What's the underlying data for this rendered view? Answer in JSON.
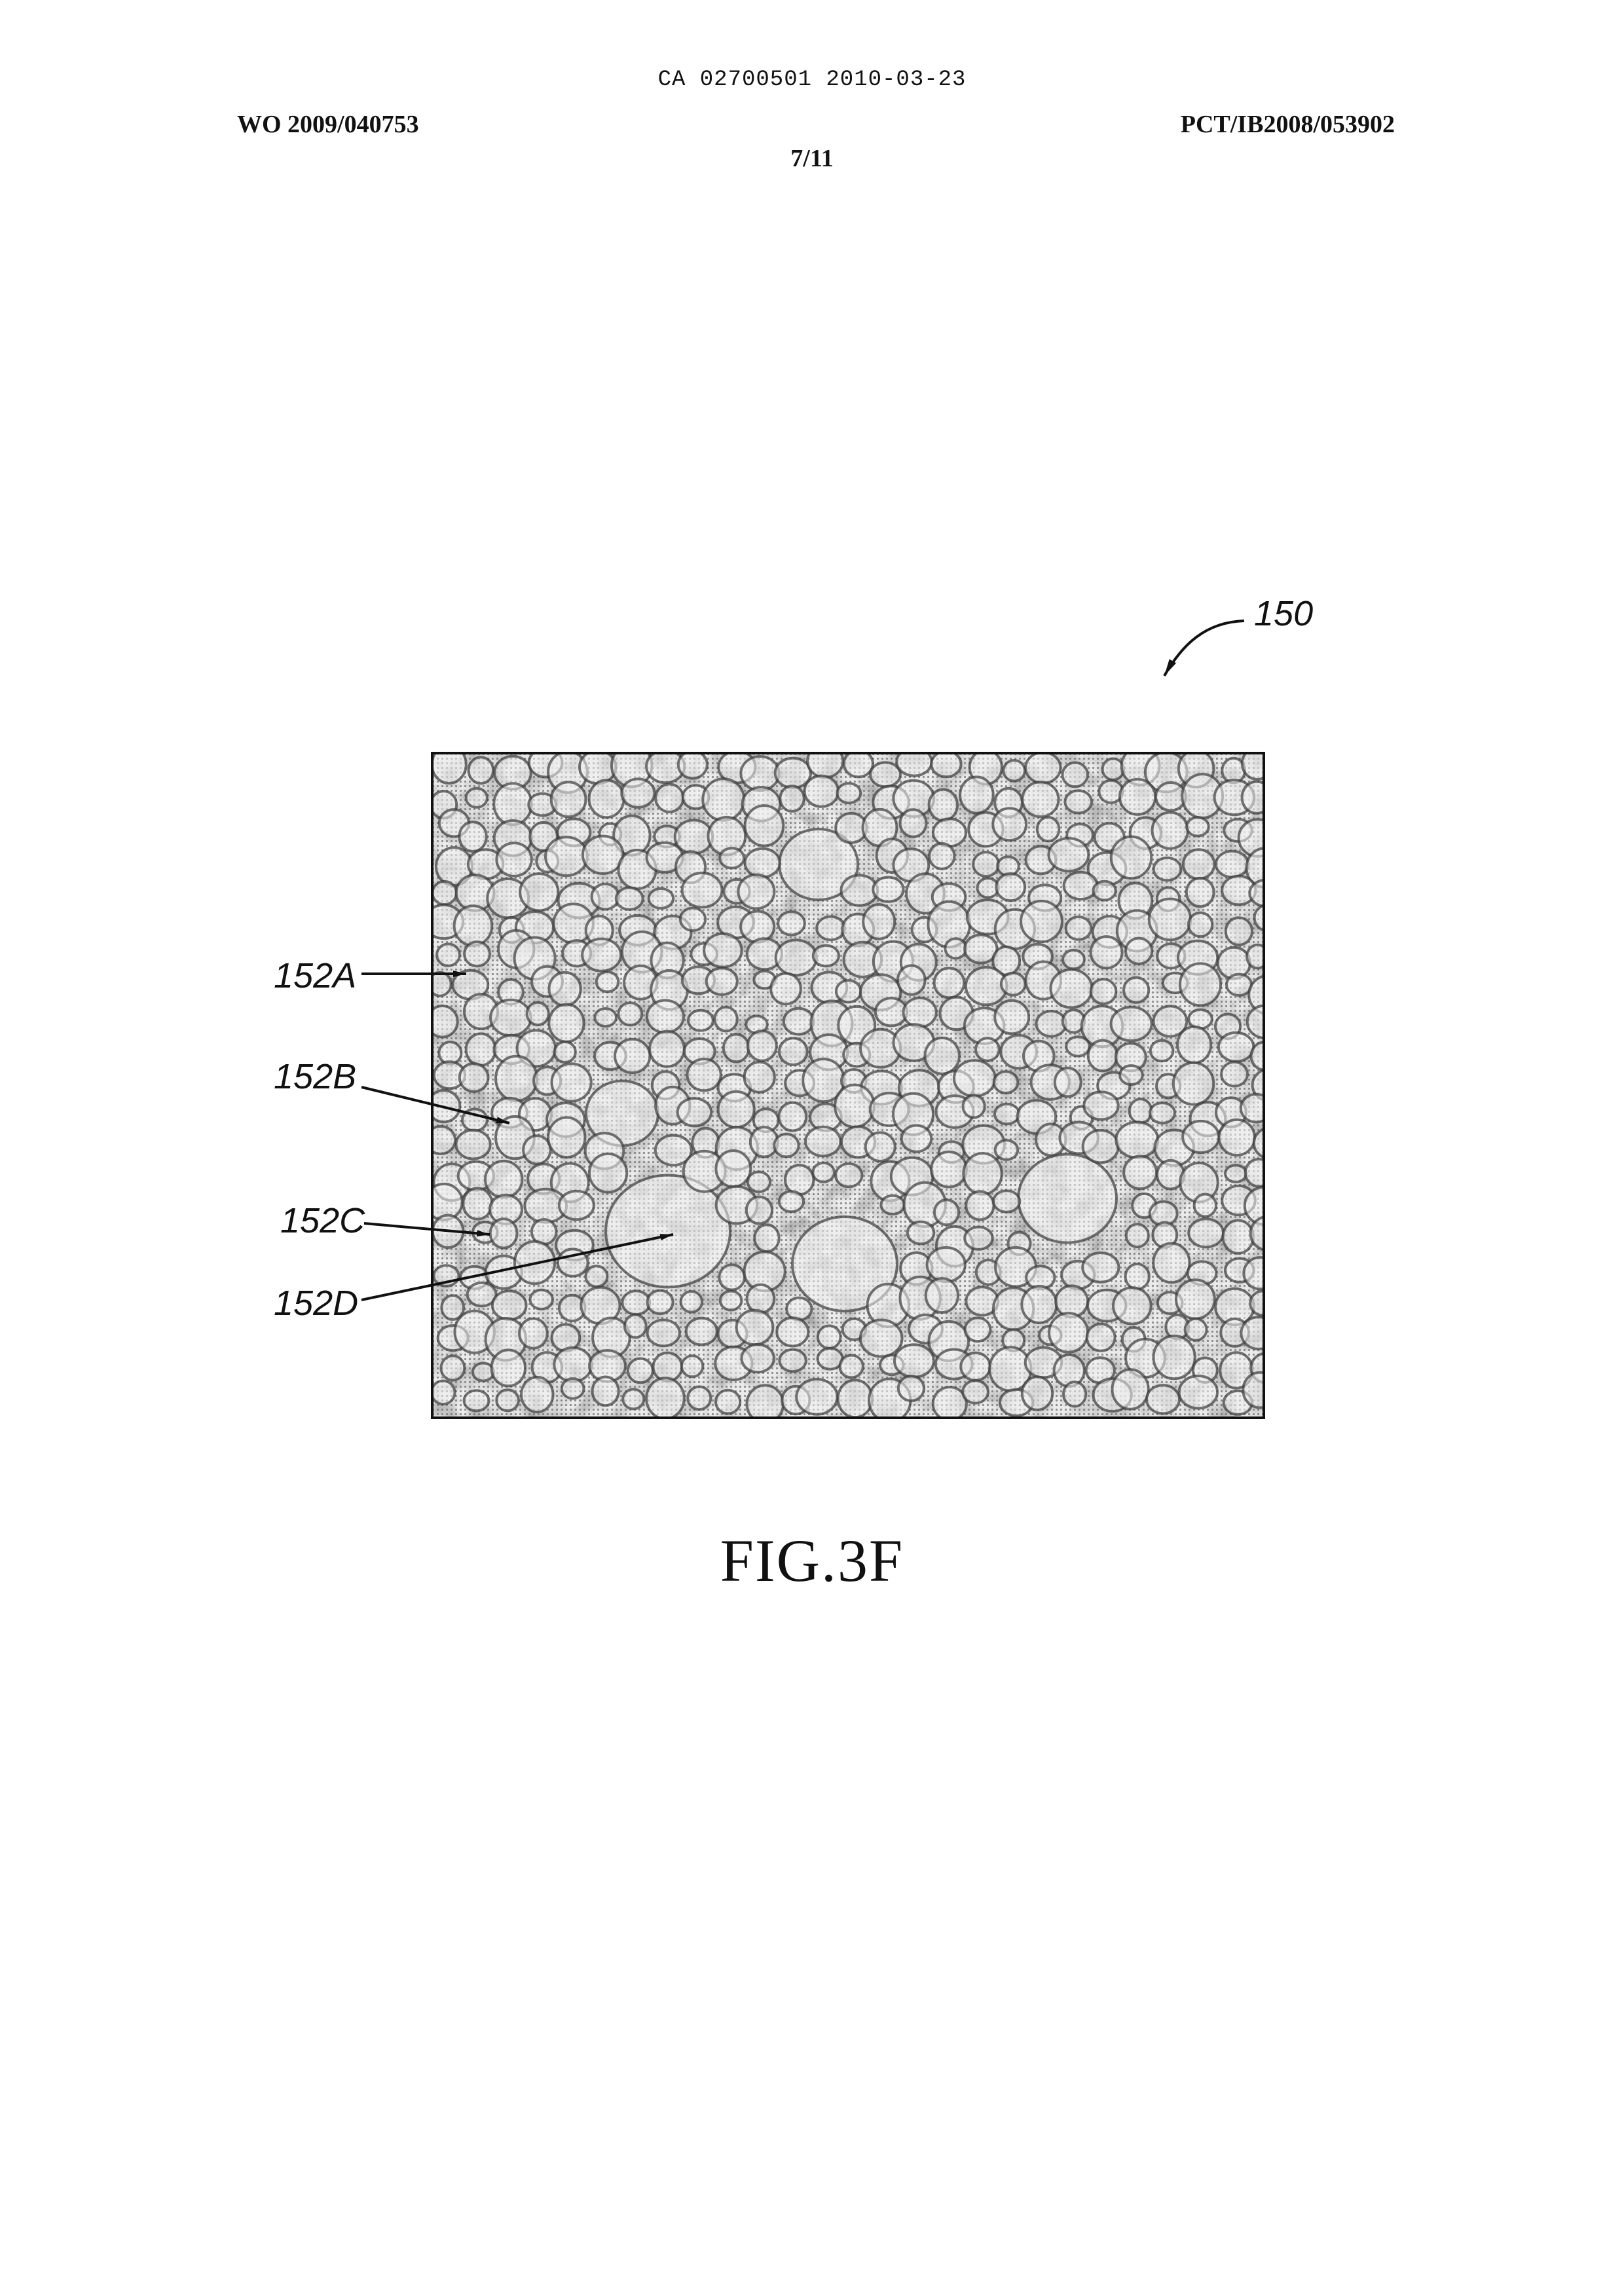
{
  "header": {
    "ca_line": "CA 02700501 2010-03-23",
    "wo_number": "WO 2009/040753",
    "pct_number": "PCT/IB2008/053902",
    "sheet": "7/11"
  },
  "figure": {
    "ref_main": "150",
    "labels": {
      "a": "152A",
      "b": "152B",
      "c": "152C",
      "d": "152D"
    },
    "caption": "FIG.3F"
  }
}
